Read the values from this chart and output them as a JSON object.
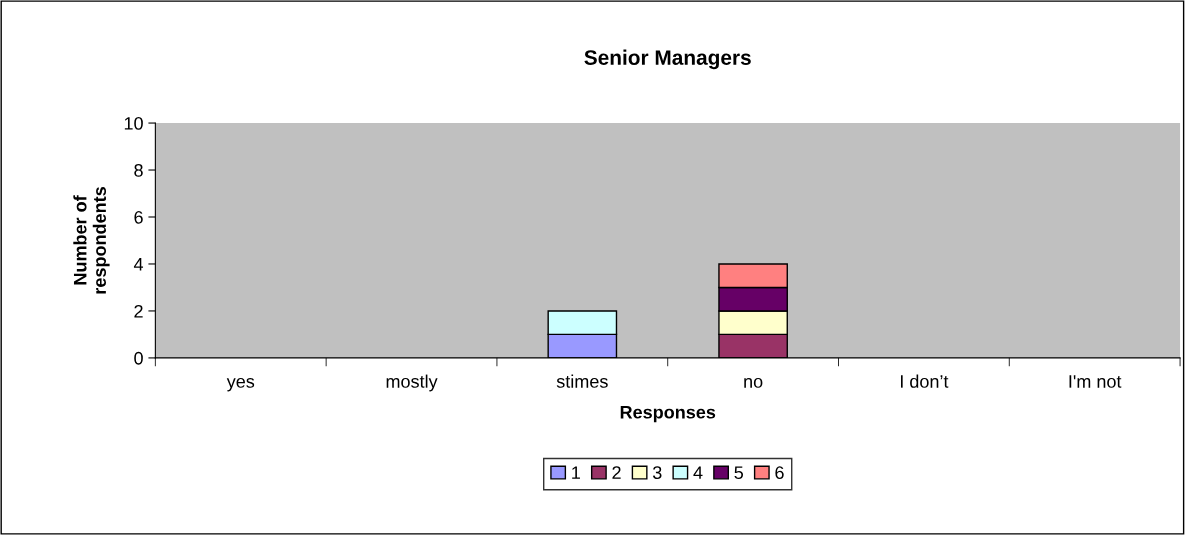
{
  "chart_data": {
    "type": "bar",
    "title": "Senior Managers",
    "xlabel": "Responses",
    "ylabel": "Number of\nrespondents",
    "categories": [
      "yes",
      "mostly",
      "stimes",
      "no",
      "I don’t",
      "I'm not"
    ],
    "stacked": true,
    "ylim": [
      0,
      10
    ],
    "yticks": [
      0,
      2,
      4,
      6,
      8,
      10
    ],
    "grid": false,
    "legend": "bottom",
    "series": [
      {
        "name": "1",
        "color": "#9999ff",
        "values": [
          null,
          null,
          1,
          null,
          null,
          null
        ]
      },
      {
        "name": "2",
        "color": "#993366",
        "values": [
          null,
          null,
          null,
          1,
          null,
          null
        ]
      },
      {
        "name": "3",
        "color": "#ffffcc",
        "values": [
          null,
          null,
          null,
          1,
          null,
          null
        ]
      },
      {
        "name": "4",
        "color": "#ccffff",
        "values": [
          null,
          null,
          1,
          null,
          null,
          null
        ]
      },
      {
        "name": "5",
        "color": "#660066",
        "values": [
          null,
          null,
          null,
          1,
          null,
          null
        ]
      },
      {
        "name": "6",
        "color": "#ff8080",
        "values": [
          null,
          null,
          null,
          1,
          null,
          null
        ]
      }
    ]
  }
}
